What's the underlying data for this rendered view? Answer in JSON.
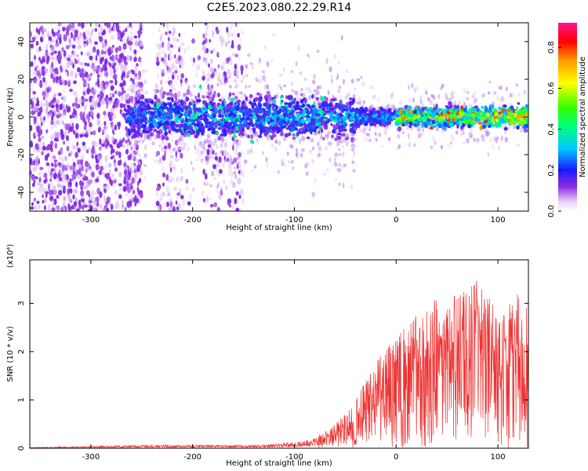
{
  "title": "C2E5.2023.080.22.29.R14",
  "chart_data": [
    {
      "type": "heatmap",
      "title": "C2E5.2023.080.22.29.R14",
      "xlabel": "Height of straight line (km)",
      "ylabel": "Frequency (Hz)",
      "xlim": [
        -360,
        130
      ],
      "ylim": [
        -50,
        50
      ],
      "x_ticks": [
        -300,
        -200,
        -100,
        0,
        100
      ],
      "y_ticks": [
        -40,
        -20,
        0,
        20,
        40
      ],
      "grid": false,
      "colorbar": {
        "label": "Normalized spectral amplitude",
        "range": [
          0.0,
          0.92
        ],
        "ticks": [
          0.0,
          0.2,
          0.4,
          0.6,
          0.8
        ]
      },
      "features": {
        "noisy_scatter_region_x": [
          -360,
          -250
        ],
        "sparse_column_region_x": [
          -235,
          -150
        ],
        "main_band_start_x": -265,
        "main_band_center_freq": 0,
        "main_band_halfwidth_hz": 10,
        "high_amplitude_region_x": [
          0,
          130
        ]
      }
    },
    {
      "type": "line",
      "xlabel": "Height of straight line (km)",
      "ylabel": "SNR (10 * v/v)",
      "y_scale_label": "(x10⁴)",
      "xlim": [
        -360,
        130
      ],
      "ylim": [
        0,
        3.9
      ],
      "x_ticks": [
        -300,
        -200,
        -100,
        0,
        100
      ],
      "y_ticks": [
        0,
        1,
        2,
        3
      ],
      "grid": false,
      "series": [
        {
          "color": "#ee3333",
          "envelope": [
            {
              "x": -360,
              "y": 0.02
            },
            {
              "x": -240,
              "y": 0.08
            },
            {
              "x": -130,
              "y": 0.08
            },
            {
              "x": -100,
              "y": 0.15
            },
            {
              "x": -80,
              "y": 0.25
            },
            {
              "x": -60,
              "y": 0.5
            },
            {
              "x": -40,
              "y": 1.0
            },
            {
              "x": -20,
              "y": 1.8
            },
            {
              "x": 0,
              "y": 2.3
            },
            {
              "x": 20,
              "y": 2.8
            },
            {
              "x": 40,
              "y": 3.1
            },
            {
              "x": 60,
              "y": 3.2
            },
            {
              "x": 80,
              "y": 3.5
            },
            {
              "x": 100,
              "y": 3.0
            },
            {
              "x": 120,
              "y": 3.2
            },
            {
              "x": 130,
              "y": 3.4
            }
          ]
        }
      ]
    }
  ]
}
